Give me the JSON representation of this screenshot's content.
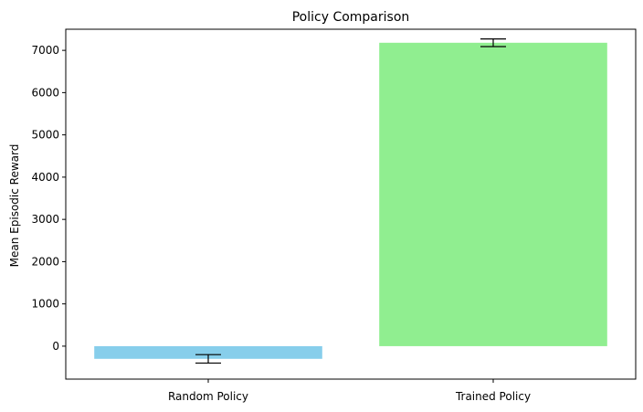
{
  "chart_data": {
    "type": "bar",
    "title": "Policy Comparison",
    "xlabel": "",
    "ylabel": "Mean Episodic Reward",
    "categories": [
      "Random Policy",
      "Trained Policy"
    ],
    "values": [
      -300,
      7180
    ],
    "errors": [
      100,
      90
    ],
    "colors": [
      "#87ceeb",
      "#90ee90"
    ],
    "ylim": [
      -780,
      7500
    ],
    "yticks": [
      0,
      1000,
      2000,
      3000,
      4000,
      5000,
      6000,
      7000
    ],
    "ytick_labels": [
      "0",
      "1000",
      "2000",
      "3000",
      "4000",
      "5000",
      "6000",
      "7000"
    ],
    "grid": false,
    "legend": "none"
  }
}
